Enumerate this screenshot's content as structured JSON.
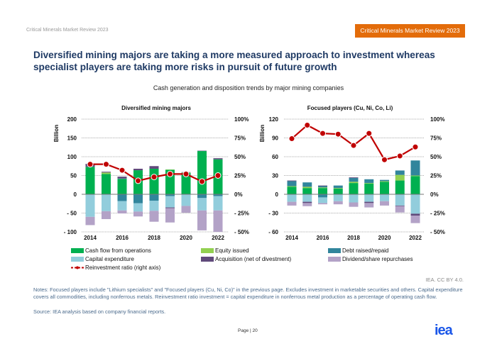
{
  "header": {
    "left_text": "Critical Minerals Market Review 2023",
    "badge_text": "Critical Minerals Market Review 2023",
    "badge_color": "#e36c0a"
  },
  "title": "Diversified mining majors are taking a more measured approach to investment whereas specialist players are taking more risks in pursuit of future growth",
  "subtitle": "Cash generation and disposition trends by major mining companies",
  "colors": {
    "cash_flow": "#00b050",
    "equity": "#92d050",
    "debt": "#31859c",
    "capex": "#92cddc",
    "acquisition": "#604a7b",
    "dividend": "#b3a2c7",
    "ratio": "#c00000"
  },
  "legend": [
    {
      "key": "cash_flow",
      "label": "Cash flow from operations"
    },
    {
      "key": "equity",
      "label": "Equity issued"
    },
    {
      "key": "debt",
      "label": "Debt raised/repaid"
    },
    {
      "key": "capex",
      "label": "Capital expenditure"
    },
    {
      "key": "acquisition",
      "label": "Acquisition (net of divestment)"
    },
    {
      "key": "dividend",
      "label": "Dividend/share repurchases"
    },
    {
      "key": "ratio",
      "label": "Reinvestment ratio (right axis)"
    }
  ],
  "chart_data": [
    {
      "type": "bar",
      "title": "Diversified mining majors",
      "ylabel": "Billion",
      "ylim": [
        -100,
        200
      ],
      "y_ticks": [
        200,
        150,
        100,
        50,
        0,
        -50,
        -100
      ],
      "y_tick_labels": [
        "200",
        "150",
        "100",
        "50",
        "0",
        "- 50",
        "- 100"
      ],
      "y2lim": [
        -0.5,
        1.0
      ],
      "y2_tick_labels": [
        "100%",
        "75%",
        "50%",
        "25%",
        "0%",
        "- 25%",
        "- 50%"
      ],
      "categories": [
        "2014",
        "2015",
        "2016",
        "2017",
        "2018",
        "2019",
        "2020",
        "2021",
        "2022"
      ],
      "x_tick_labels": [
        "2014",
        "2016",
        "2018",
        "2020",
        "2022"
      ],
      "grid": true,
      "positive_series": [
        {
          "key": "cash_flow",
          "name": "Cash flow from operations",
          "values": [
            73,
            54,
            41,
            64,
            68,
            65,
            57,
            115,
            93
          ]
        },
        {
          "key": "equity",
          "name": "Equity issued",
          "values": [
            0,
            4,
            0,
            0,
            0,
            1,
            1,
            0,
            0
          ]
        },
        {
          "key": "debt",
          "name": "Debt raised/repaid",
          "values": [
            0,
            0,
            1,
            0,
            0,
            0,
            0,
            0,
            0
          ]
        },
        {
          "key": "acquisition",
          "name": "Acquisition (net of divestment)",
          "values": [
            8,
            2,
            5,
            4,
            7,
            0,
            1,
            1,
            3
          ]
        }
      ],
      "negative_series": [
        {
          "key": "debt",
          "name": "Debt raised/repaid",
          "values": [
            0,
            0,
            -18,
            -24,
            -17,
            -5,
            0,
            -10,
            -5
          ]
        },
        {
          "key": "capex",
          "name": "Capital expenditure",
          "values": [
            -60,
            -45,
            -25,
            -22,
            -27,
            -30,
            -31,
            -33,
            -38
          ]
        },
        {
          "key": "acquisition",
          "name": "Acquisition (net of divestment)",
          "values": [
            0,
            0,
            0,
            0,
            0,
            -2,
            0,
            0,
            0
          ]
        },
        {
          "key": "dividend",
          "name": "Dividend/share repurchases",
          "values": [
            -22,
            -21,
            -8,
            -13,
            -29,
            -38,
            -18,
            -53,
            -57
          ]
        }
      ],
      "line_series": {
        "key": "ratio",
        "name": "Reinvestment ratio (right axis)",
        "values": [
          0.4,
          0.4,
          0.32,
          0.18,
          0.23,
          0.27,
          0.27,
          0.17,
          0.25
        ]
      }
    },
    {
      "type": "bar",
      "title": "Focused players (Cu, Ni, Co, Li)",
      "ylabel": "Billion",
      "ylim": [
        -60,
        120
      ],
      "y_ticks": [
        120,
        90,
        60,
        30,
        0,
        -30,
        -60
      ],
      "y_tick_labels": [
        "120",
        "90",
        "60",
        "30",
        "0",
        "- 30",
        "- 60"
      ],
      "y2lim": [
        -0.5,
        1.0
      ],
      "y2_tick_labels": [
        "100%",
        "75%",
        "50%",
        "25%",
        "0%",
        "- 25%",
        "- 50%"
      ],
      "categories": [
        "2014",
        "2015",
        "2016",
        "2017",
        "2018",
        "2019",
        "2020",
        "2021",
        "2022"
      ],
      "x_tick_labels": [
        "2014",
        "2016",
        "2018",
        "2020",
        "2022"
      ],
      "grid": true,
      "positive_series": [
        {
          "key": "cash_flow",
          "name": "Cash flow from operations",
          "values": [
            12,
            10,
            10,
            9,
            18,
            17,
            20,
            22,
            29
          ]
        },
        {
          "key": "equity",
          "name": "Equity issued",
          "values": [
            1,
            2,
            1,
            1,
            2,
            1,
            1,
            9,
            1
          ]
        },
        {
          "key": "debt",
          "name": "Debt raised/repaid",
          "values": [
            8,
            7,
            2,
            4,
            6,
            6,
            2,
            7,
            24
          ]
        },
        {
          "key": "acquisition",
          "name": "Acquisition (net of divestment)",
          "values": [
            1,
            0,
            1,
            0,
            1,
            0,
            0,
            0,
            0
          ]
        }
      ],
      "negative_series": [
        {
          "key": "debt",
          "name": "Debt raised/repaid",
          "values": [
            0,
            0,
            -5,
            0,
            0,
            0,
            0,
            0,
            0
          ]
        },
        {
          "key": "capex",
          "name": "Capital expenditure",
          "values": [
            -12,
            -12,
            -9,
            -11,
            -13,
            -12,
            -11,
            -18,
            -31
          ]
        },
        {
          "key": "acquisition",
          "name": "Acquisition (net of divestment)",
          "values": [
            0,
            -2,
            0,
            0,
            0,
            -2,
            0,
            -1,
            -3
          ]
        },
        {
          "key": "dividend",
          "name": "Dividend/share repurchases",
          "values": [
            -6,
            -5,
            -2,
            -5,
            -7,
            -7,
            -7,
            -10,
            -12
          ]
        }
      ],
      "line_series": {
        "key": "ratio",
        "name": "Reinvestment ratio (right axis)",
        "values": [
          0.74,
          0.92,
          0.81,
          0.8,
          0.65,
          0.81,
          0.46,
          0.51,
          0.63
        ]
      }
    }
  ],
  "credit": "IEA. CC BY 4.0.",
  "notes": "Notes: Focused players include \"Lithium specialists\" and \"Focused players (Cu, Ni, Co)\" in the previous page. Excludes investment in marketable securities and others. Capital expenditure covers all commodities, including nonferrous metals. Reinvestment ratio investment = capital expenditure in nonferrous metal production as a percentage of operating cash flow.",
  "source": "Source: IEA analysis based on company financial reports.",
  "footer": {
    "page_label": "Page | 20",
    "logo": "iea"
  }
}
